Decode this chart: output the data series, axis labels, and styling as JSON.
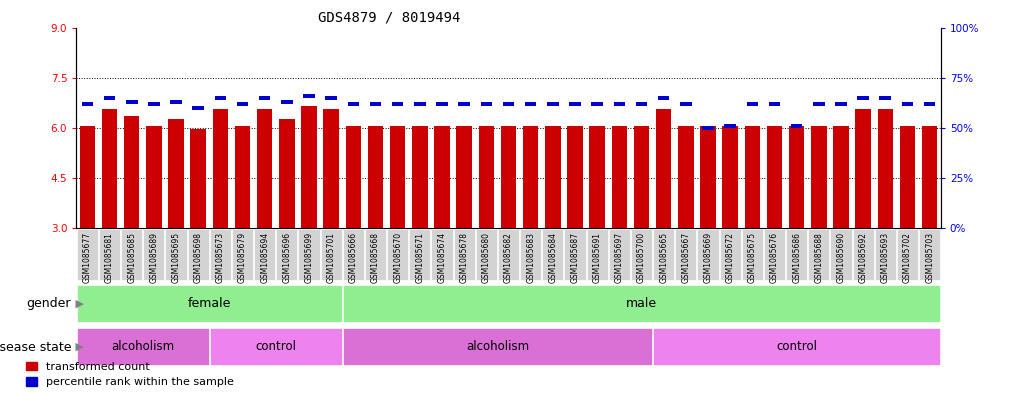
{
  "title": "GDS4879 / 8019494",
  "samples": [
    "GSM1085677",
    "GSM1085681",
    "GSM1085685",
    "GSM1085689",
    "GSM1085695",
    "GSM1085698",
    "GSM1085673",
    "GSM1085679",
    "GSM1085694",
    "GSM1085696",
    "GSM1085699",
    "GSM1085701",
    "GSM1085666",
    "GSM1085668",
    "GSM1085670",
    "GSM1085671",
    "GSM1085674",
    "GSM1085678",
    "GSM1085680",
    "GSM1085682",
    "GSM1085683",
    "GSM1085684",
    "GSM1085687",
    "GSM1085691",
    "GSM1085697",
    "GSM1085700",
    "GSM1085665",
    "GSM1085667",
    "GSM1085669",
    "GSM1085672",
    "GSM1085675",
    "GSM1085676",
    "GSM1085686",
    "GSM1085688",
    "GSM1085690",
    "GSM1085692",
    "GSM1085693",
    "GSM1085702",
    "GSM1085703"
  ],
  "red_values": [
    6.05,
    6.55,
    6.35,
    6.05,
    6.25,
    5.95,
    6.55,
    6.05,
    6.55,
    6.25,
    6.65,
    6.55,
    6.05,
    6.05,
    6.05,
    6.05,
    6.05,
    6.05,
    6.05,
    6.05,
    6.05,
    6.05,
    6.05,
    6.05,
    6.05,
    6.05,
    6.55,
    6.05,
    6.05,
    6.05,
    6.05,
    6.05,
    6.05,
    6.05,
    6.05,
    6.55,
    6.55,
    6.05,
    6.05
  ],
  "blue_values": [
    62,
    65,
    63,
    62,
    63,
    60,
    65,
    62,
    65,
    63,
    66,
    65,
    62,
    62,
    62,
    62,
    62,
    62,
    62,
    62,
    62,
    62,
    62,
    62,
    62,
    62,
    65,
    62,
    50,
    51,
    62,
    62,
    51,
    62,
    62,
    65,
    65,
    62,
    62
  ],
  "ylim_left": [
    3,
    9
  ],
  "ylim_right": [
    0,
    100
  ],
  "yticks_left": [
    3,
    4.5,
    6,
    7.5,
    9
  ],
  "yticks_right": [
    0,
    25,
    50,
    75,
    100
  ],
  "ytick_labels_right": [
    "0%",
    "25%",
    "50%",
    "75%",
    "100%"
  ],
  "bar_bottom": 3,
  "red_color": "#CC0000",
  "blue_color": "#0000CC",
  "title_fontsize": 10,
  "tick_fontsize": 7.5,
  "label_fontsize": 9,
  "female_count": 12,
  "male_count": 27,
  "female_alcoholism": 6,
  "female_control": 6,
  "male_alcoholism": 14,
  "male_control": 13
}
